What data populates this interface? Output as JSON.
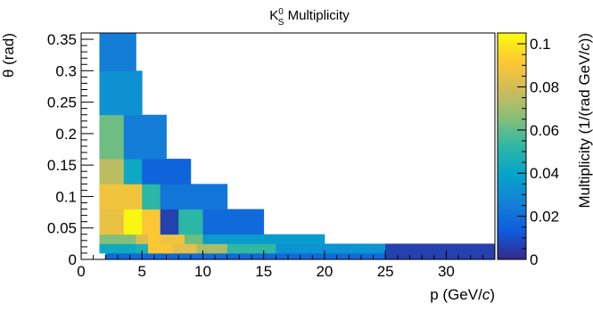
{
  "chart_data": {
    "type": "heatmap",
    "title": {
      "prefix": "K",
      "superscript": "0",
      "subscript": "S",
      "suffix": " Multiplicity"
    },
    "xlabel": {
      "pre": "p (GeV/",
      "italic": "c",
      "post": ")"
    },
    "ylabel": "θ (rad)",
    "zlabel": {
      "pre": "Multiplicity (1/(rad GeV/",
      "italic": "c",
      "post": "))"
    },
    "xlim": [
      0,
      34
    ],
    "ylim": [
      0,
      0.36
    ],
    "zlim": [
      0,
      0.105
    ],
    "x_ticks": [
      {
        "value": 0,
        "label": "0"
      },
      {
        "value": 5,
        "label": "5"
      },
      {
        "value": 10,
        "label": "10"
      },
      {
        "value": 15,
        "label": "15"
      },
      {
        "value": 20,
        "label": "20"
      },
      {
        "value": 25,
        "label": "25"
      },
      {
        "value": 30,
        "label": "30"
      }
    ],
    "y_ticks": [
      {
        "value": 0,
        "label": "0"
      },
      {
        "value": 0.05,
        "label": "0.05"
      },
      {
        "value": 0.1,
        "label": "0.1"
      },
      {
        "value": 0.15,
        "label": "0.15"
      },
      {
        "value": 0.2,
        "label": "0.2"
      },
      {
        "value": 0.25,
        "label": "0.25"
      },
      {
        "value": 0.3,
        "label": "0.3"
      },
      {
        "value": 0.35,
        "label": "0.35"
      }
    ],
    "z_ticks": [
      {
        "value": 0,
        "label": "0"
      },
      {
        "value": 0.02,
        "label": "0.02"
      },
      {
        "value": 0.04,
        "label": "0.04"
      },
      {
        "value": 0.06,
        "label": "0.06"
      },
      {
        "value": 0.08,
        "label": "0.08"
      },
      {
        "value": 0.1,
        "label": "0.1"
      }
    ],
    "colorscale": [
      "#352a87",
      "#0f5cdd",
      "#1481d6",
      "#06a4ca",
      "#2eb7a4",
      "#87bf77",
      "#d1bb59",
      "#fec832",
      "#f9fb0e"
    ],
    "grid": false,
    "bins": [
      {
        "x": [
          2,
          25
        ],
        "y": [
          0,
          0.01
        ],
        "z": 0.018
      },
      {
        "x": [
          1.5,
          4.5
        ],
        "y": [
          0.01,
          0.025
        ],
        "z": 0.043
      },
      {
        "x": [
          4.5,
          5.5
        ],
        "y": [
          0.01,
          0.025
        ],
        "z": 0.047
      },
      {
        "x": [
          5.5,
          7.5
        ],
        "y": [
          0.01,
          0.025
        ],
        "z": 0.091
      },
      {
        "x": [
          7.5,
          9.5
        ],
        "y": [
          0.01,
          0.025
        ],
        "z": 0.084
      },
      {
        "x": [
          9.5,
          12
        ],
        "y": [
          0.01,
          0.025
        ],
        "z": 0.072
      },
      {
        "x": [
          12,
          16
        ],
        "y": [
          0.01,
          0.025
        ],
        "z": 0.053
      },
      {
        "x": [
          16,
          25
        ],
        "y": [
          0.01,
          0.025
        ],
        "z": 0.033
      },
      {
        "x": [
          25,
          34
        ],
        "y": [
          0,
          0.025
        ],
        "z": 0.006
      },
      {
        "x": [
          1.5,
          4.5
        ],
        "y": [
          0.025,
          0.04
        ],
        "z": 0.065
      },
      {
        "x": [
          4.5,
          5.5
        ],
        "y": [
          0.025,
          0.04
        ],
        "z": 0.082
      },
      {
        "x": [
          5.5,
          6.5
        ],
        "y": [
          0.025,
          0.04
        ],
        "z": 0.092
      },
      {
        "x": [
          6.5,
          8.5
        ],
        "y": [
          0.025,
          0.04
        ],
        "z": 0.087
      },
      {
        "x": [
          8.5,
          10
        ],
        "y": [
          0.025,
          0.04
        ],
        "z": 0.062
      },
      {
        "x": [
          10,
          20
        ],
        "y": [
          0.025,
          0.04
        ],
        "z": 0.036
      },
      {
        "x": [
          1.5,
          3.5
        ],
        "y": [
          0.04,
          0.08
        ],
        "z": 0.086
      },
      {
        "x": [
          3.5,
          5
        ],
        "y": [
          0.04,
          0.08
        ],
        "z": 0.104
      },
      {
        "x": [
          5,
          6.5
        ],
        "y": [
          0.04,
          0.08
        ],
        "z": 0.091
      },
      {
        "x": [
          6.5,
          8
        ],
        "y": [
          0.04,
          0.08
        ],
        "z": 0.006
      },
      {
        "x": [
          8,
          10
        ],
        "y": [
          0.04,
          0.08
        ],
        "z": 0.052
      },
      {
        "x": [
          10,
          15
        ],
        "y": [
          0.04,
          0.08
        ],
        "z": 0.018
      },
      {
        "x": [
          1.5,
          5
        ],
        "y": [
          0.08,
          0.12
        ],
        "z": 0.088
      },
      {
        "x": [
          5,
          6.5
        ],
        "y": [
          0.08,
          0.12
        ],
        "z": 0.052
      },
      {
        "x": [
          6.5,
          12
        ],
        "y": [
          0.08,
          0.12
        ],
        "z": 0.022
      },
      {
        "x": [
          1.5,
          3.5
        ],
        "y": [
          0.12,
          0.16
        ],
        "z": 0.075
      },
      {
        "x": [
          3.5,
          5
        ],
        "y": [
          0.12,
          0.16
        ],
        "z": 0.042
      },
      {
        "x": [
          5,
          9
        ],
        "y": [
          0.12,
          0.16
        ],
        "z": 0.016
      },
      {
        "x": [
          1.5,
          3.5
        ],
        "y": [
          0.16,
          0.23
        ],
        "z": 0.062
      },
      {
        "x": [
          3.5,
          7
        ],
        "y": [
          0.16,
          0.23
        ],
        "z": 0.025
      },
      {
        "x": [
          1.5,
          5
        ],
        "y": [
          0.23,
          0.3
        ],
        "z": 0.032
      },
      {
        "x": [
          1.5,
          4.5
        ],
        "y": [
          0.3,
          0.36
        ],
        "z": 0.025
      }
    ]
  }
}
